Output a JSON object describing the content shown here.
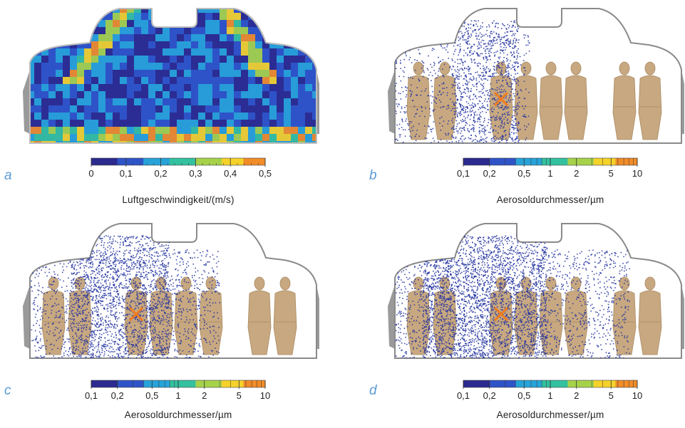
{
  "colors": {
    "accent_letter": "#5b9bd5",
    "mannequin": "#c8a880",
    "mannequin_edge": "#a88a62",
    "particle": "#2233a0",
    "marker": "#f07c1e",
    "cabin_outline": "#888888"
  },
  "panels": [
    {
      "id": "a",
      "letter": "a",
      "kind": "velocity-field",
      "scale_title": "Luftgeschwindigkeit/(m/s)",
      "scale_ticks": [
        "0",
        "0,1",
        "0,2",
        "0,3",
        "0,4",
        "0,5"
      ],
      "scale_type": "linear"
    },
    {
      "id": "b",
      "letter": "b",
      "kind": "aerosol",
      "density": 0.18,
      "scale_title": "Aerosoldurchmesser/µm",
      "scale_ticks": [
        "0,1",
        "0,2",
        "0,5",
        "1",
        "2",
        "5",
        "10"
      ],
      "scale_type": "log"
    },
    {
      "id": "c",
      "letter": "c",
      "kind": "aerosol",
      "density": 0.55,
      "scale_title": "Aerosoldurchmesser/µm",
      "scale_ticks": [
        "0,1",
        "0,2",
        "0,5",
        "1",
        "2",
        "5",
        "10"
      ],
      "scale_type": "log"
    },
    {
      "id": "d",
      "letter": "d",
      "kind": "aerosol",
      "density": 0.85,
      "scale_title": "Aerosoldurchmesser/µm",
      "scale_ticks": [
        "0,1",
        "0,2",
        "0,5",
        "1",
        "2",
        "5",
        "10"
      ],
      "scale_type": "log"
    }
  ]
}
